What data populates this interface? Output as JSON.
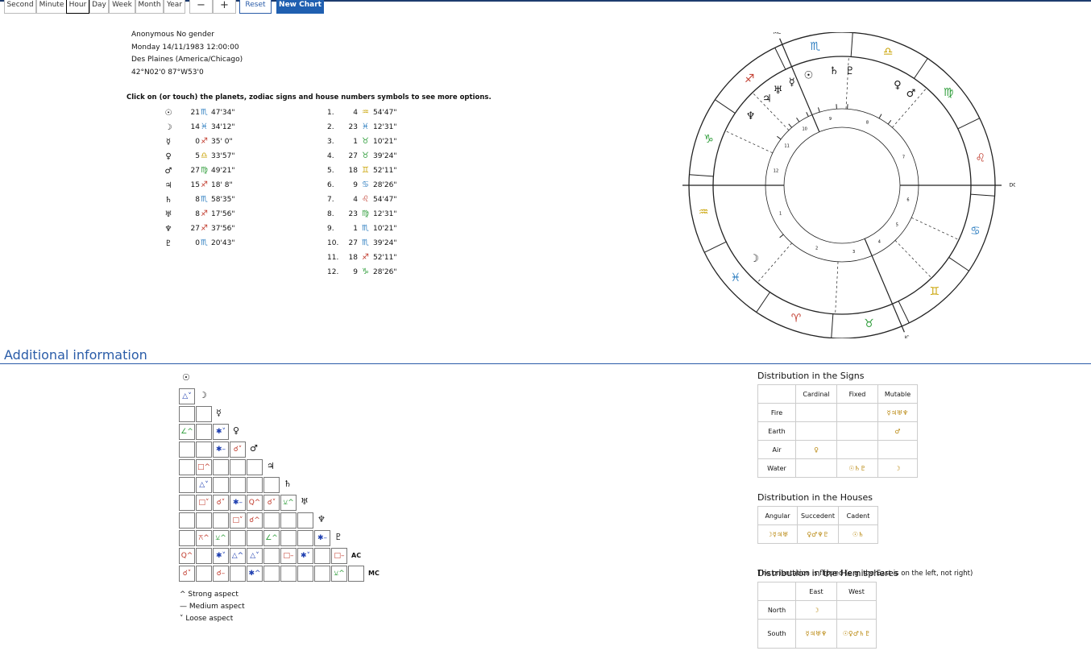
{
  "toolbar": {
    "units": [
      "Second",
      "Minute",
      "Hour",
      "Day",
      "Week",
      "Month",
      "Year"
    ],
    "active": "Hour",
    "minus": "−",
    "plus": "+",
    "reset": "Reset",
    "new_chart": "New Chart"
  },
  "person": {
    "lines": [
      "Anonymous No gender",
      "Monday 14/11/1983 12:00:00",
      "Des Plaines (America/Chicago)",
      "42°N02'0 87°W53'0"
    ]
  },
  "instructions": "Click on (or touch) the planets, zodiac signs and house numbers symbols to see more options.",
  "signs": [
    "♈",
    "♉",
    "♊",
    "♋",
    "♌",
    "♍",
    "♎",
    "♏",
    "♐",
    "♑",
    "♒",
    "♓"
  ],
  "planets": [
    {
      "symbol": "☉",
      "deg": "21",
      "sign": "♏",
      "min": "47'34\""
    },
    {
      "symbol": "☽",
      "deg": "14",
      "sign": "♓",
      "min": "34'12\""
    },
    {
      "symbol": "☿",
      "deg": "0",
      "sign": "♐",
      "min": "35' 0\""
    },
    {
      "symbol": "♀",
      "deg": "5",
      "sign": "♎",
      "min": "33'57\""
    },
    {
      "symbol": "♂",
      "deg": "27",
      "sign": "♍",
      "min": "49'21\""
    },
    {
      "symbol": "♃",
      "deg": "15",
      "sign": "♐",
      "min": "18' 8\""
    },
    {
      "symbol": "♄",
      "deg": "8",
      "sign": "♏",
      "min": "58'35\""
    },
    {
      "symbol": "♅",
      "deg": "8",
      "sign": "♐",
      "min": "17'56\""
    },
    {
      "symbol": "♆",
      "deg": "27",
      "sign": "♐",
      "min": "37'56\""
    },
    {
      "symbol": "♇",
      "deg": "0",
      "sign": "♏",
      "min": "20'43\""
    }
  ],
  "houses": [
    {
      "num": "1.",
      "deg": "4",
      "sign": "♒",
      "min": "54'47\""
    },
    {
      "num": "2.",
      "deg": "23",
      "sign": "♓",
      "min": "12'31\""
    },
    {
      "num": "3.",
      "deg": "1",
      "sign": "♉",
      "min": "10'21\""
    },
    {
      "num": "4.",
      "deg": "27",
      "sign": "♉",
      "min": "39'24\""
    },
    {
      "num": "5.",
      "deg": "18",
      "sign": "♊",
      "min": "52'11\""
    },
    {
      "num": "6.",
      "deg": "9",
      "sign": "♋",
      "min": "28'26\""
    },
    {
      "num": "7.",
      "deg": "4",
      "sign": "♌",
      "min": "54'47\""
    },
    {
      "num": "8.",
      "deg": "23",
      "sign": "♍",
      "min": "12'31\""
    },
    {
      "num": "9.",
      "deg": "1",
      "sign": "♏",
      "min": "10'21\""
    },
    {
      "num": "10.",
      "deg": "27",
      "sign": "♏",
      "min": "39'24\""
    },
    {
      "num": "11.",
      "deg": "18",
      "sign": "♐",
      "min": "52'11\""
    },
    {
      "num": "12.",
      "deg": "9",
      "sign": "♑",
      "min": "28'26\""
    }
  ],
  "wheel": {
    "mc": "MC",
    "ac": "AC",
    "dc": "DC",
    "ic": "IC",
    "house_numbers": [
      "1",
      "2",
      "3",
      "4",
      "5",
      "6",
      "7",
      "8",
      "9",
      "10",
      "11",
      "12"
    ]
  },
  "additional_title": "Additional information",
  "aspect_grid": {
    "labels": [
      "☉",
      "☽",
      "☿",
      "♀",
      "♂",
      "♃",
      "♄",
      "♅",
      "♆",
      "♇",
      "AC",
      "MC"
    ],
    "rows": [
      [],
      [
        "△˅"
      ],
      [
        null,
        null
      ],
      [
        "∠^",
        null,
        "✱˅"
      ],
      [
        null,
        null,
        "✱–",
        "☌˅"
      ],
      [
        null,
        "□^",
        null,
        null,
        null
      ],
      [
        null,
        "△˅",
        null,
        null,
        null,
        null
      ],
      [
        null,
        "□˅",
        "☌˅",
        "✱–",
        "Q^",
        "☌˅",
        "⚺^"
      ],
      [
        null,
        null,
        null,
        "□˅",
        "☌^",
        null,
        null,
        null
      ],
      [
        null,
        "⚻^",
        "⚺^",
        null,
        null,
        "∠^",
        null,
        null,
        "✱–"
      ],
      [
        "Q^",
        null,
        "✱˅",
        "△^",
        "△˅",
        null,
        "□–",
        "✱˅",
        null,
        "□–"
      ],
      [
        "☌˅",
        null,
        "☌–",
        null,
        "✱^",
        null,
        null,
        null,
        null,
        "⚺^",
        null
      ]
    ],
    "legend": [
      "^ Strong aspect",
      "— Medium aspect",
      "˅ Loose aspect"
    ]
  },
  "dist_signs": {
    "title": "Distribution in the Signs",
    "header": [
      null,
      "Cardinal",
      "Fixed",
      "Mutable"
    ],
    "rows": [
      [
        "Fire",
        null,
        null,
        "☿♃♅♆"
      ],
      [
        "Earth",
        null,
        null,
        "♂"
      ],
      [
        "Air",
        "♀",
        null,
        null
      ],
      [
        "Water",
        null,
        "☉♄♇",
        "☽"
      ]
    ]
  },
  "dist_houses": {
    "title": "Distribution in the Houses",
    "header": [
      "Angular",
      "Succedent",
      "Cadent"
    ],
    "rows": [
      [
        "☽☿♃♅",
        "♀♂♆♇",
        "☉♄"
      ]
    ]
  },
  "dist_hemi": {
    "title": "Distribution in the Hemispheres",
    "note": "The orientation is flipped (e.g. the East is on the left, not right)",
    "header": [
      null,
      "East",
      "West"
    ],
    "rows": [
      [
        "North",
        "☽",
        null
      ],
      [
        "South",
        "☿♃♅♆",
        "☉♀♂♄♇"
      ]
    ]
  }
}
